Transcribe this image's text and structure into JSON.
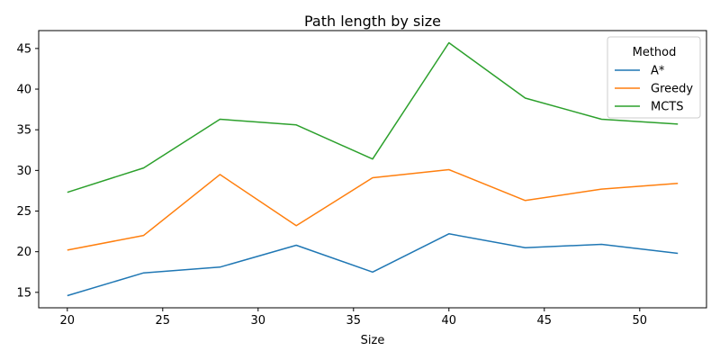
{
  "chart_data": {
    "type": "line",
    "title": "Path length by size",
    "xlabel": "Size",
    "ylabel": "",
    "x": [
      20,
      24,
      28,
      32,
      36,
      40,
      44,
      48,
      52
    ],
    "xlim": [
      18.5,
      53.5
    ],
    "ylim": [
      13.1,
      47.2
    ],
    "xticks": [
      20,
      25,
      30,
      35,
      40,
      45,
      50
    ],
    "yticks": [
      15,
      20,
      25,
      30,
      35,
      40,
      45
    ],
    "grid": false,
    "legend": {
      "title": "Method",
      "placement": "top-right"
    },
    "series": [
      {
        "name": "A*",
        "color": "#1f77b4",
        "values": [
          14.6,
          17.4,
          18.1,
          20.8,
          17.5,
          22.2,
          20.5,
          20.9,
          19.8
        ]
      },
      {
        "name": "Greedy",
        "color": "#ff7f0e",
        "values": [
          20.2,
          22.0,
          29.5,
          23.2,
          29.1,
          30.1,
          26.3,
          27.7,
          28.4
        ]
      },
      {
        "name": "MCTS",
        "color": "#2ca02c",
        "values": [
          27.3,
          30.3,
          36.3,
          35.6,
          31.4,
          45.7,
          38.9,
          36.3,
          35.7
        ]
      }
    ]
  }
}
